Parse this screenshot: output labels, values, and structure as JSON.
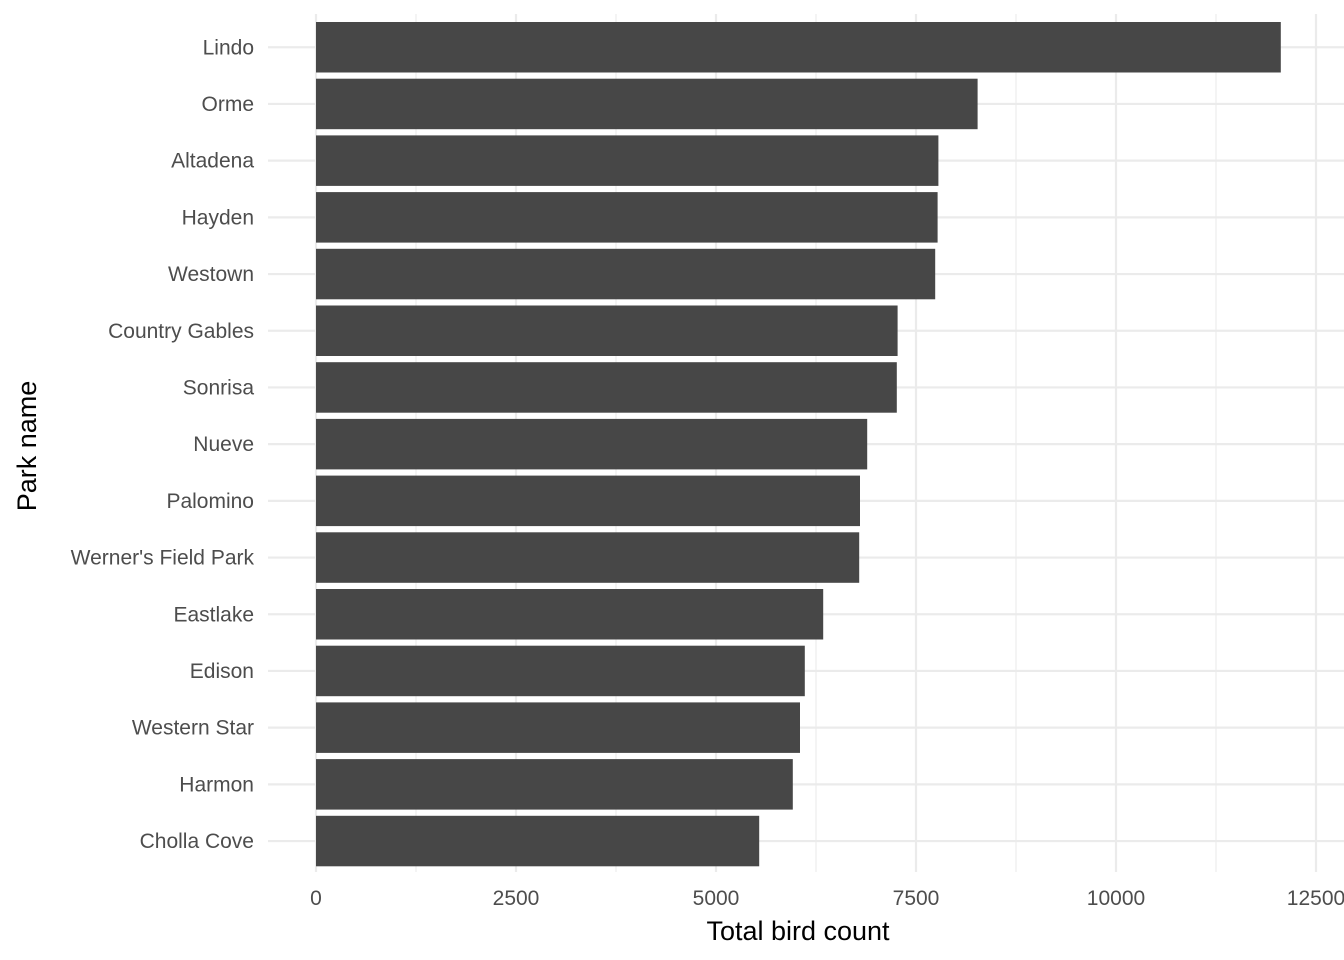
{
  "chart_data": {
    "type": "bar",
    "orientation": "horizontal",
    "categories": [
      "Lindo",
      "Orme",
      "Altadena",
      "Hayden",
      "Westown",
      "Country Gables",
      "Sonrisa",
      "Nueve",
      "Palomino",
      "Werner's Field Park",
      "Eastlake",
      "Edison",
      "Western Star",
      "Harmon",
      "Cholla Cove"
    ],
    "values": [
      12060,
      8270,
      7780,
      7770,
      7740,
      7270,
      7260,
      6890,
      6800,
      6790,
      6340,
      6110,
      6050,
      5960,
      5540
    ],
    "xlabel": "Total bird count",
    "ylabel": "Park name",
    "xlim": [
      0,
      12500
    ],
    "xticks": [
      0,
      2500,
      5000,
      7500,
      10000,
      12500
    ],
    "xtick_labels": [
      "0",
      "2500",
      "5000",
      "7500",
      "10000",
      "12500"
    ],
    "grid": true,
    "bar_color": "#474747"
  }
}
